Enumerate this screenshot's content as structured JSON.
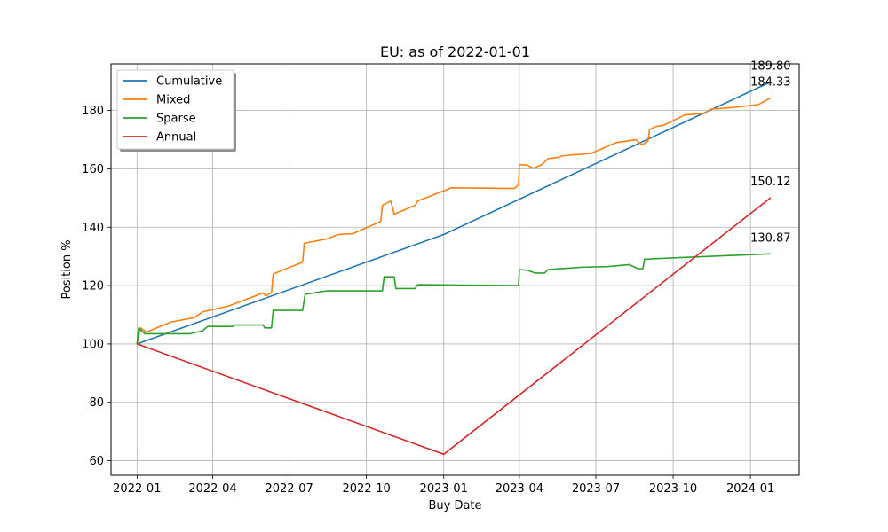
{
  "chart_data": {
    "type": "line",
    "title": "EU: as of 2022-01-01",
    "xlabel": "Buy Date",
    "ylabel": "Position %",
    "xlim": [
      "2021-12-01",
      "2024-02-28"
    ],
    "ylim": [
      55,
      196
    ],
    "x_ticks": [
      "2022-01",
      "2022-04",
      "2022-07",
      "2022-10",
      "2023-01",
      "2023-04",
      "2023-07",
      "2023-10",
      "2024-01"
    ],
    "y_ticks": [
      60,
      80,
      100,
      120,
      140,
      160,
      180
    ],
    "grid": true,
    "legend_position": "upper-left",
    "series": [
      {
        "name": "Cumulative",
        "color": "#1f77b4",
        "points": [
          [
            "2022-01-01",
            100
          ],
          [
            "2023-01-01",
            137.5
          ],
          [
            "2024-01-25",
            189.8
          ]
        ],
        "end_label": "189.80"
      },
      {
        "name": "Mixed",
        "color": "#ff7f0e",
        "points": [
          [
            "2022-01-01",
            100
          ],
          [
            "2022-01-05",
            105.5
          ],
          [
            "2022-01-12",
            104
          ],
          [
            "2022-02-10",
            107.5
          ],
          [
            "2022-03-10",
            109
          ],
          [
            "2022-03-20",
            111
          ],
          [
            "2022-04-20",
            113
          ],
          [
            "2022-05-31",
            117.5
          ],
          [
            "2022-06-03",
            116.5
          ],
          [
            "2022-06-10",
            117.5
          ],
          [
            "2022-06-12",
            124
          ],
          [
            "2022-07-17",
            128
          ],
          [
            "2022-07-19",
            134.5
          ],
          [
            "2022-08-15",
            136
          ],
          [
            "2022-08-28",
            137.5
          ],
          [
            "2022-09-15",
            137.8
          ],
          [
            "2022-10-18",
            142
          ],
          [
            "2022-10-20",
            147.5
          ],
          [
            "2022-10-30",
            149
          ],
          [
            "2022-11-03",
            144.5
          ],
          [
            "2022-11-28",
            147.5
          ],
          [
            "2022-12-01",
            149
          ],
          [
            "2023-01-10",
            153.5
          ],
          [
            "2023-03-26",
            153.3
          ],
          [
            "2023-03-31",
            154.5
          ],
          [
            "2023-04-01",
            161.5
          ],
          [
            "2023-04-10",
            161.3
          ],
          [
            "2023-04-18",
            160.2
          ],
          [
            "2023-04-28",
            161.5
          ],
          [
            "2023-05-05",
            163.5
          ],
          [
            "2023-05-18",
            164
          ],
          [
            "2023-05-22",
            164.5
          ],
          [
            "2023-06-25",
            165.3
          ],
          [
            "2023-07-25",
            169
          ],
          [
            "2023-08-18",
            170
          ],
          [
            "2023-08-25",
            168.2
          ],
          [
            "2023-09-01",
            169.5
          ],
          [
            "2023-09-03",
            173.5
          ],
          [
            "2023-09-10",
            174.5
          ],
          [
            "2023-09-20",
            175
          ],
          [
            "2023-10-15",
            178.5
          ],
          [
            "2023-11-07",
            179
          ],
          [
            "2023-11-15",
            180.5
          ],
          [
            "2023-12-10",
            181
          ],
          [
            "2024-01-10",
            182
          ],
          [
            "2024-01-25",
            184.33
          ]
        ],
        "end_label": "184.33"
      },
      {
        "name": "Sparse",
        "color": "#2ca02c",
        "points": [
          [
            "2022-01-01",
            100
          ],
          [
            "2022-01-03",
            105.5
          ],
          [
            "2022-01-10",
            103.5
          ],
          [
            "2022-03-05",
            103.5
          ],
          [
            "2022-03-20",
            104.5
          ],
          [
            "2022-03-26",
            106
          ],
          [
            "2022-04-25",
            106
          ],
          [
            "2022-04-27",
            106.5
          ],
          [
            "2022-05-31",
            106.5
          ],
          [
            "2022-06-02",
            105.5
          ],
          [
            "2022-06-10",
            105.5
          ],
          [
            "2022-06-12",
            111.5
          ],
          [
            "2022-07-17",
            111.5
          ],
          [
            "2022-07-20",
            117
          ],
          [
            "2022-08-15",
            118.2
          ],
          [
            "2022-09-01",
            118.2
          ],
          [
            "2022-10-20",
            118.2
          ],
          [
            "2022-10-22",
            123
          ],
          [
            "2022-11-03",
            123
          ],
          [
            "2022-11-05",
            119
          ],
          [
            "2022-11-28",
            119
          ],
          [
            "2022-12-01",
            120.3
          ],
          [
            "2023-03-31",
            120
          ],
          [
            "2023-04-01",
            125.5
          ],
          [
            "2023-04-10",
            125.3
          ],
          [
            "2023-04-20",
            124.3
          ],
          [
            "2023-05-01",
            124.3
          ],
          [
            "2023-05-05",
            125.5
          ],
          [
            "2023-06-15",
            126.3
          ],
          [
            "2023-07-15",
            126.5
          ],
          [
            "2023-08-10",
            127.2
          ],
          [
            "2023-08-20",
            125.8
          ],
          [
            "2023-08-26",
            125.8
          ],
          [
            "2023-08-28",
            129
          ],
          [
            "2023-09-15",
            129.3
          ],
          [
            "2024-01-25",
            130.87
          ]
        ],
        "end_label": "130.87"
      },
      {
        "name": "Annual",
        "color": "#d62728",
        "points": [
          [
            "2022-01-01",
            100
          ],
          [
            "2023-01-01",
            62.2
          ],
          [
            "2024-01-25",
            150.12
          ]
        ],
        "end_label": "150.12"
      }
    ]
  }
}
